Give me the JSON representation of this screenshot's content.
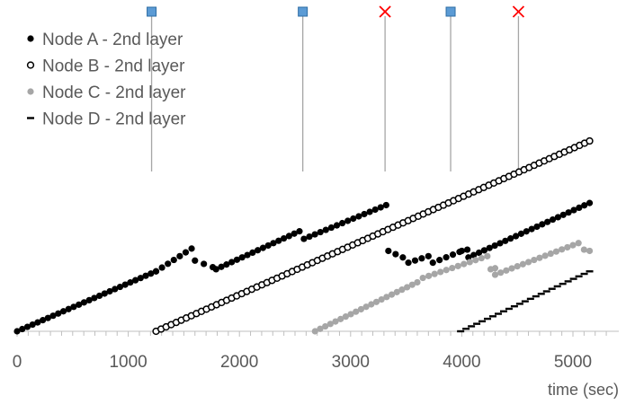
{
  "chart_data": {
    "type": "scatter",
    "title": "",
    "xlabel": "time (sec)",
    "ylabel": "",
    "xlim": [
      0,
      5400
    ],
    "ylim": [
      0,
      1
    ],
    "x_ticks": [
      "0",
      "1000",
      "2000",
      "3000",
      "4000",
      "5000"
    ],
    "y_axis_shown": false,
    "grid": false,
    "legend_position": "top-left",
    "series": [
      {
        "name": "Node A - 2nd layer",
        "marker": "filled-circle",
        "color": "#000000",
        "segments": [
          {
            "x_start": 0,
            "x_end": 1250,
            "y_start": 0.0,
            "y_end": 0.284,
            "n": 28
          },
          {
            "x_start": 1250,
            "x_end": 1570,
            "y_start": 0.284,
            "y_end": 0.392,
            "n": 7
          },
          {
            "x_start": 1600,
            "x_end": 1760,
            "y_start": 0.335,
            "y_end": 0.304,
            "n": 3
          },
          {
            "x_start": 1790,
            "x_end": 2540,
            "y_start": 0.294,
            "y_end": 0.474,
            "n": 17
          },
          {
            "x_start": 2580,
            "x_end": 3320,
            "y_start": 0.438,
            "y_end": 0.598,
            "n": 16
          },
          {
            "x_start": 3340,
            "x_end": 3470,
            "y_start": 0.381,
            "y_end": 0.35,
            "n": 3
          },
          {
            "x_start": 3520,
            "x_end": 3700,
            "y_start": 0.325,
            "y_end": 0.356,
            "n": 4
          },
          {
            "x_start": 3740,
            "x_end": 3980,
            "y_start": 0.325,
            "y_end": 0.376,
            "n": 5
          },
          {
            "x_start": 4000,
            "x_end": 4050,
            "y_start": 0.381,
            "y_end": 0.387,
            "n": 2
          },
          {
            "x_start": 4060,
            "x_end": 5150,
            "y_start": 0.35,
            "y_end": 0.608,
            "n": 24
          }
        ]
      },
      {
        "name": "Node B - 2nd layer",
        "marker": "open-circle",
        "color": "#000000",
        "segments": [
          {
            "x_start": 1250,
            "x_end": 5150,
            "y_start": 0.0,
            "y_end": 0.902,
            "n": 87
          }
        ]
      },
      {
        "name": "Node C - 2nd layer",
        "marker": "filled-circle",
        "color": "#a6a6a6",
        "segments": [
          {
            "x_start": 2680,
            "x_end": 3600,
            "y_start": 0.0,
            "y_end": 0.232,
            "n": 21
          },
          {
            "x_start": 3650,
            "x_end": 4230,
            "y_start": 0.253,
            "y_end": 0.356,
            "n": 12
          },
          {
            "x_start": 4260,
            "x_end": 4300,
            "y_start": 0.294,
            "y_end": 0.299,
            "n": 2
          },
          {
            "x_start": 4300,
            "x_end": 5050,
            "y_start": 0.268,
            "y_end": 0.418,
            "n": 16
          },
          {
            "x_start": 5100,
            "x_end": 5150,
            "y_start": 0.387,
            "y_end": 0.381,
            "n": 2
          }
        ]
      },
      {
        "name": "Node D - 2nd layer",
        "marker": "dash",
        "color": "#000000",
        "segments": [
          {
            "x_start": 3990,
            "x_end": 5150,
            "y_start": 0.0,
            "y_end": 0.284,
            "n": 25
          }
        ]
      }
    ],
    "event_markers": [
      {
        "x": 1210,
        "symbol": "blue-square",
        "color": "#5b9bd5"
      },
      {
        "x": 2570,
        "symbol": "blue-square",
        "color": "#5b9bd5"
      },
      {
        "x": 3310,
        "symbol": "red-x",
        "color": "#ff0000"
      },
      {
        "x": 3900,
        "symbol": "blue-square",
        "color": "#5b9bd5"
      },
      {
        "x": 4510,
        "symbol": "red-x",
        "color": "#ff0000"
      }
    ],
    "event_line_color": "#a6a6a6"
  }
}
